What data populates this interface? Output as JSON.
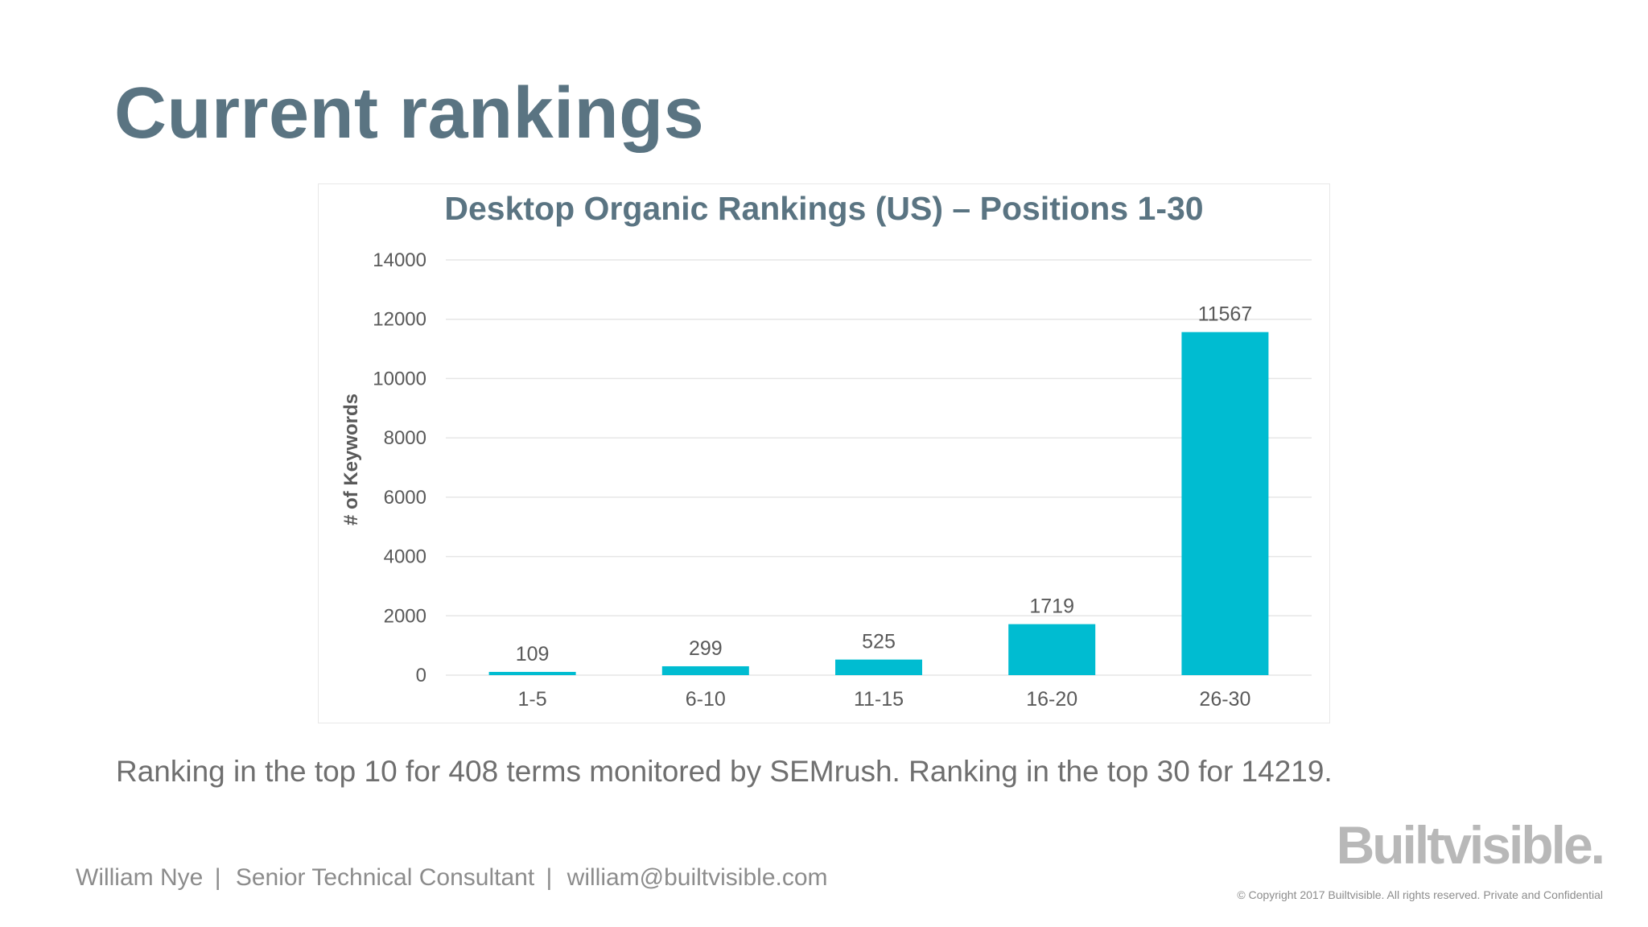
{
  "slide": {
    "title": "Current rankings",
    "caption": "Ranking in the top 10 for 408 terms monitored by SEMrush. Ranking in the top 30 for 14219.",
    "footer": {
      "name": "William Nye",
      "separator": "|",
      "role": "Senior Technical Consultant",
      "email": "william@builtvisible.com"
    },
    "brand": "Builtvisible.",
    "copyright": "© Copyright 2017 Builtvisible. All rights reserved. Private and Confidential"
  },
  "colors": {
    "bar": "#00bcd1",
    "title": "#5a7482",
    "grid": "#e6e6e6"
  },
  "chart_data": {
    "type": "bar",
    "title": "Desktop Organic Rankings (US) – Positions 1-30",
    "xlabel": "",
    "ylabel": "# of Keywords",
    "categories": [
      "1-5",
      "6-10",
      "11-15",
      "16-20",
      "26-30"
    ],
    "values": [
      109,
      299,
      525,
      1719,
      11567
    ],
    "data_labels": [
      "109",
      "299",
      "525",
      "1719",
      "11567"
    ],
    "ylim": [
      0,
      14000
    ],
    "yticks": [
      0,
      2000,
      4000,
      6000,
      8000,
      10000,
      12000,
      14000
    ],
    "grid": true,
    "legend": "none"
  }
}
